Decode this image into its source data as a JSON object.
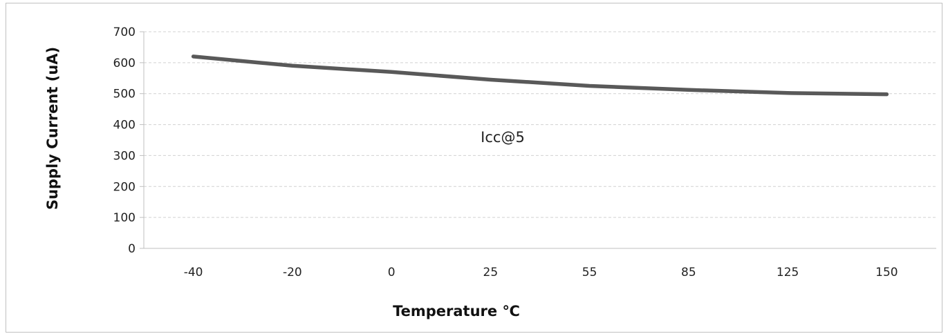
{
  "chart_data": {
    "type": "line",
    "categories": [
      "-40",
      "-20",
      "0",
      "25",
      "55",
      "85",
      "125",
      "150"
    ],
    "series": [
      {
        "values": [
          620,
          590,
          570,
          545,
          525,
          512,
          502,
          498
        ]
      }
    ],
    "xlabel": "Temperature ℃",
    "ylabel": "Supply Current (uA)",
    "ylim": [
      0,
      700
    ],
    "yticks": [
      0,
      100,
      200,
      300,
      400,
      500,
      600,
      700
    ],
    "annotation": "Icc@5",
    "grid": true,
    "line_color": "#595959",
    "grid_color": "#d0d0d0"
  }
}
